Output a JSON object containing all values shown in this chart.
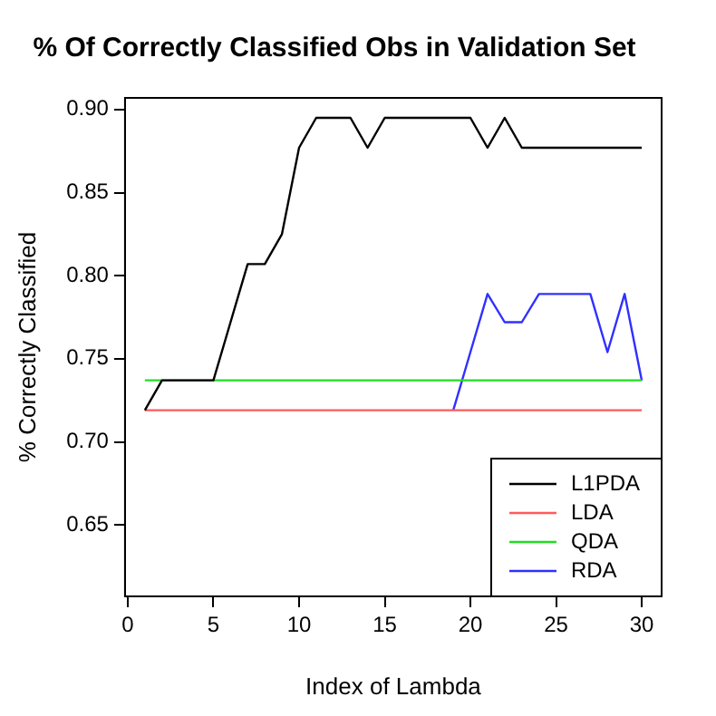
{
  "chart_data": {
    "type": "line",
    "title": "% Of Correctly Classified Obs in Validation Set",
    "xlabel": "Index of Lambda",
    "ylabel": "% Correctly Classified",
    "x": [
      1,
      2,
      3,
      4,
      5,
      6,
      7,
      8,
      9,
      10,
      11,
      12,
      13,
      14,
      15,
      16,
      17,
      18,
      19,
      20,
      21,
      22,
      23,
      24,
      25,
      26,
      27,
      28,
      29,
      30
    ],
    "series": [
      {
        "name": "L1PDA",
        "color": "#000000",
        "values": [
          0.719,
          0.737,
          0.737,
          0.737,
          0.737,
          0.772,
          0.807,
          0.807,
          0.825,
          0.877,
          0.895,
          0.895,
          0.895,
          0.877,
          0.895,
          0.895,
          0.895,
          0.895,
          0.895,
          0.895,
          0.877,
          0.895,
          0.877,
          0.877,
          0.877,
          0.877,
          0.877,
          0.877,
          0.877,
          0.877
        ]
      },
      {
        "name": "LDA",
        "color": "#ff5a5a",
        "values": [
          0.719,
          0.719,
          0.719,
          0.719,
          0.719,
          0.719,
          0.719,
          0.719,
          0.719,
          0.719,
          0.719,
          0.719,
          0.719,
          0.719,
          0.719,
          0.719,
          0.719,
          0.719,
          0.719,
          0.719,
          0.719,
          0.719,
          0.719,
          0.719,
          0.719,
          0.719,
          0.719,
          0.719,
          0.719,
          0.719
        ]
      },
      {
        "name": "QDA",
        "color": "#22dd22",
        "values": [
          0.737,
          0.737,
          0.737,
          0.737,
          0.737,
          0.737,
          0.737,
          0.737,
          0.737,
          0.737,
          0.737,
          0.737,
          0.737,
          0.737,
          0.737,
          0.737,
          0.737,
          0.737,
          0.737,
          0.737,
          0.737,
          0.737,
          0.737,
          0.737,
          0.737,
          0.737,
          0.737,
          0.737,
          0.737,
          0.737
        ]
      },
      {
        "name": "RDA",
        "color": "#3030ff",
        "values": [
          null,
          null,
          null,
          null,
          null,
          null,
          null,
          null,
          null,
          null,
          null,
          null,
          null,
          null,
          null,
          null,
          null,
          null,
          0.719,
          0.754,
          0.789,
          0.772,
          0.772,
          0.789,
          0.789,
          0.789,
          0.789,
          0.754,
          0.789,
          0.737
        ]
      }
    ],
    "xlim": [
      -0.16,
      31.16
    ],
    "xticks": [
      0,
      5,
      10,
      15,
      20,
      25,
      30
    ],
    "ylim": [
      0.607,
      0.907
    ],
    "yticks": [
      {
        "value": 0.65,
        "label": "0.65"
      },
      {
        "value": 0.7,
        "label": "0.70"
      },
      {
        "value": 0.75,
        "label": "0.75"
      },
      {
        "value": 0.8,
        "label": "0.80"
      },
      {
        "value": 0.85,
        "label": "0.85"
      },
      {
        "value": 0.9,
        "label": "0.90"
      }
    ],
    "grid": false,
    "legend": "bottom right",
    "marker": "none",
    "line_style": "solid"
  }
}
